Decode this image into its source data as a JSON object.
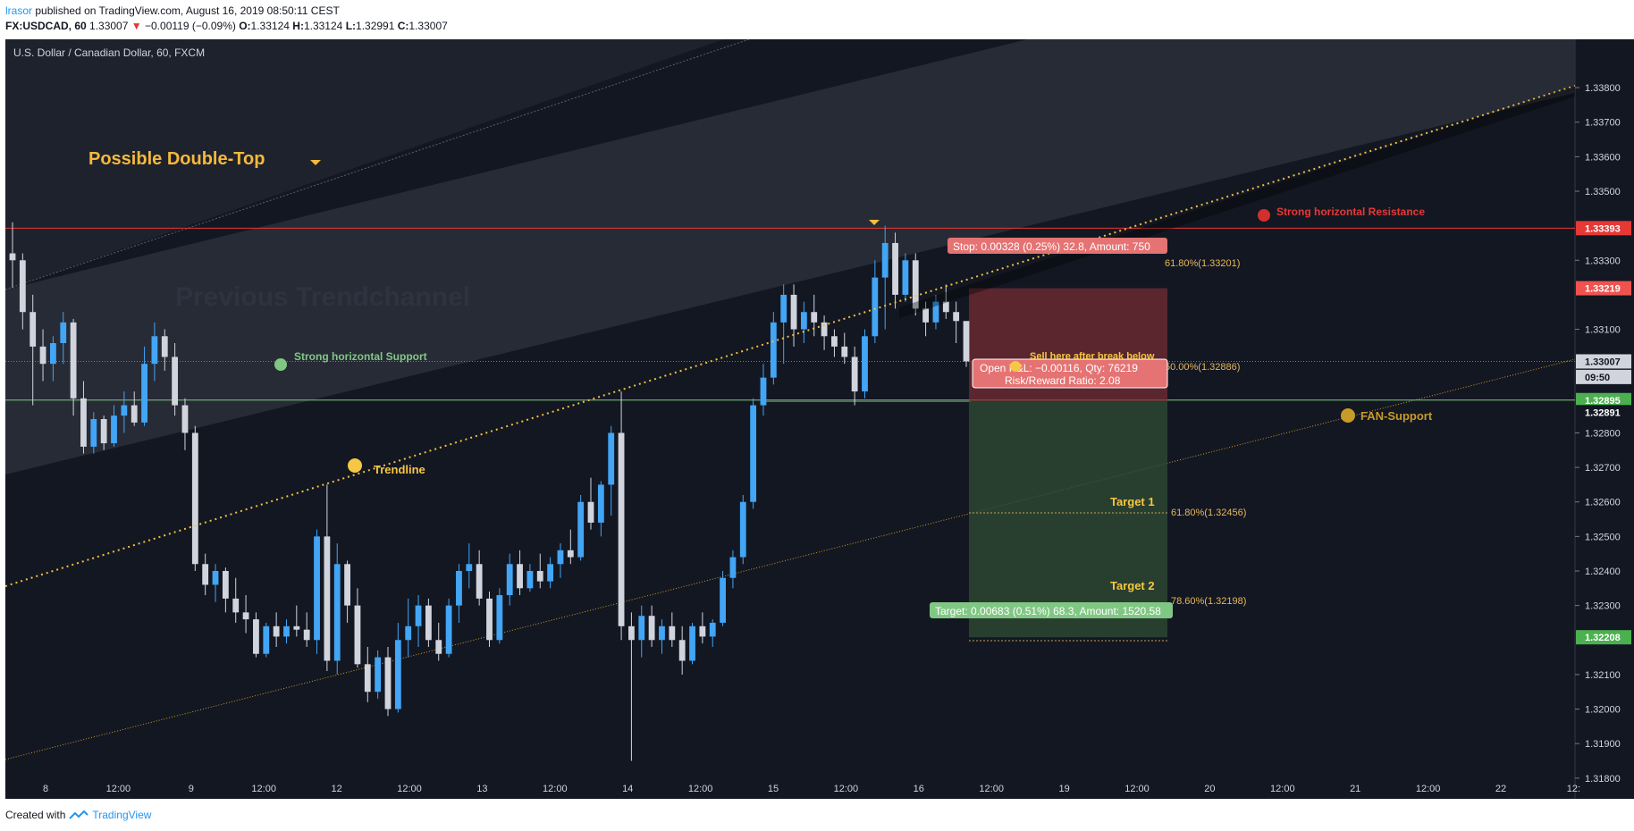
{
  "header": {
    "author": "lrasor",
    "published_text": "published on TradingView.com, August 16, 2019 08:50:11 CEST",
    "symbol": "FX:USDCAD, 60",
    "last": "1.33007",
    "arrow": "▼",
    "change": "−0.00119 (−0.09%)",
    "o_label": "O:",
    "o_value": "1.33124",
    "h_label": "H:",
    "h_value": "1.33124",
    "l_label": "L:",
    "l_value": "1.32991",
    "c_label": "C:",
    "c_value": "1.33007"
  },
  "footer": {
    "created_with": "Created with",
    "brand": "TradingView"
  },
  "chart_data": {
    "type": "candlestick",
    "title": "U.S. Dollar / Canadian Dollar, 60, FXCM",
    "ylim": [
      1.3174,
      1.3394
    ],
    "y_ticks": [
      "1.33800",
      "1.33700",
      "1.33600",
      "1.33500",
      "1.33300",
      "1.33100",
      "1.32800",
      "1.32700",
      "1.32600",
      "1.32500",
      "1.32400",
      "1.32300",
      "1.32100",
      "1.32000",
      "1.31900",
      "1.31800"
    ],
    "x_ticks": [
      "8",
      "12:00",
      "9",
      "12:00",
      "12",
      "12:00",
      "13",
      "12:00",
      "14",
      "12:00",
      "15",
      "12:00",
      "16",
      "12:00",
      "19",
      "12:00",
      "20",
      "12:00",
      "21",
      "12:00",
      "22",
      "12:"
    ],
    "price_labels": [
      {
        "value": "1.33393",
        "price": 1.33393,
        "color": "#e53935"
      },
      {
        "value": "1.33219",
        "price": 1.33219,
        "color": "#ef5350"
      },
      {
        "value": "1.33007",
        "price": 1.33007,
        "color": "#d1d4dc"
      },
      {
        "value": "09:50",
        "price": 1.32962,
        "color": "#d1d4dc"
      },
      {
        "value": "1.32895",
        "price": 1.32895,
        "color": "#4caf50"
      },
      {
        "value": "1.32891",
        "price": 1.3286,
        "color": "#131722"
      },
      {
        "value": "1.32208",
        "price": 1.32208,
        "color": "#4caf50"
      }
    ],
    "annotations": {
      "double_top": "Possible Double-Top",
      "prev_channel": "Previous Trendchannel",
      "support": "Strong horizontal Support",
      "resistance": "Strong horizontal Resistance",
      "trendline": "Trendline",
      "fan_support": "FAN-Support",
      "sell_note": "Sell here after break below",
      "target1": "Target 1",
      "target2": "Target 2",
      "fib_618_top": "61.80%(1.33201)",
      "fib_50": "50.00%(1.32886)",
      "fib_618_bottom": "61.80%(1.32456)",
      "fib_786": "78.60%(1.32198)",
      "stop_box": "Stop: 0.00328 (0.25%) 32.8, Amount: 750",
      "open_pl": "Open P&L: −0.00116, Qty: 76219",
      "risk_reward": "Risk/Reward Ratio: 2.08",
      "target_box": "Target: 0.00683 (0.51%) 68.3, Amount: 1520.58"
    },
    "levels": {
      "resistance": 1.33393,
      "support": 1.32895,
      "entry": 1.32891,
      "stop": 1.33219,
      "target": 1.32208,
      "current": 1.33007
    },
    "candles": [
      [
        1.3332,
        1.3341,
        1.3322,
        1.333
      ],
      [
        1.333,
        1.3332,
        1.331,
        1.3315
      ],
      [
        1.3315,
        1.332,
        1.3288,
        1.3305
      ],
      [
        1.3305,
        1.331,
        1.3295,
        1.33
      ],
      [
        1.33,
        1.3308,
        1.3295,
        1.3306
      ],
      [
        1.3306,
        1.3315,
        1.33,
        1.3312
      ],
      [
        1.3312,
        1.3313,
        1.3285,
        1.329
      ],
      [
        1.329,
        1.3295,
        1.3274,
        1.3276
      ],
      [
        1.3276,
        1.3286,
        1.3274,
        1.3284
      ],
      [
        1.3284,
        1.3285,
        1.3275,
        1.3277
      ],
      [
        1.3277,
        1.3288,
        1.3276,
        1.3285
      ],
      [
        1.3285,
        1.3292,
        1.328,
        1.3288
      ],
      [
        1.3288,
        1.3292,
        1.3282,
        1.3283
      ],
      [
        1.3283,
        1.3305,
        1.3282,
        1.33
      ],
      [
        1.33,
        1.3312,
        1.3295,
        1.3308
      ],
      [
        1.3308,
        1.331,
        1.3298,
        1.3302
      ],
      [
        1.3302,
        1.3306,
        1.3285,
        1.3288
      ],
      [
        1.3288,
        1.329,
        1.3275,
        1.328
      ],
      [
        1.328,
        1.3282,
        1.324,
        1.3242
      ],
      [
        1.3242,
        1.3245,
        1.3233,
        1.3236
      ],
      [
        1.3236,
        1.3242,
        1.3231,
        1.324
      ],
      [
        1.324,
        1.3241,
        1.3228,
        1.3232
      ],
      [
        1.3232,
        1.3238,
        1.3225,
        1.3228
      ],
      [
        1.3228,
        1.3233,
        1.3222,
        1.3226
      ],
      [
        1.3226,
        1.3228,
        1.3215,
        1.3216
      ],
      [
        1.3216,
        1.3225,
        1.3215,
        1.3224
      ],
      [
        1.3224,
        1.3228,
        1.3218,
        1.3221
      ],
      [
        1.3221,
        1.3226,
        1.3219,
        1.3224
      ],
      [
        1.3224,
        1.323,
        1.3221,
        1.3223
      ],
      [
        1.3223,
        1.3228,
        1.3218,
        1.322
      ],
      [
        1.322,
        1.3252,
        1.3216,
        1.325
      ],
      [
        1.325,
        1.3265,
        1.3211,
        1.3214
      ],
      [
        1.3214,
        1.3248,
        1.321,
        1.3242
      ],
      [
        1.3242,
        1.3243,
        1.3225,
        1.323
      ],
      [
        1.323,
        1.3235,
        1.3212,
        1.3213
      ],
      [
        1.3213,
        1.3218,
        1.3202,
        1.3205
      ],
      [
        1.3205,
        1.3217,
        1.3203,
        1.3215
      ],
      [
        1.3215,
        1.3218,
        1.3198,
        1.32
      ],
      [
        1.32,
        1.3225,
        1.3199,
        1.322
      ],
      [
        1.322,
        1.3232,
        1.3215,
        1.3224
      ],
      [
        1.3224,
        1.3233,
        1.3218,
        1.323
      ],
      [
        1.323,
        1.3232,
        1.3218,
        1.322
      ],
      [
        1.322,
        1.3225,
        1.3214,
        1.3216
      ],
      [
        1.3216,
        1.3232,
        1.3215,
        1.323
      ],
      [
        1.323,
        1.3242,
        1.3225,
        1.324
      ],
      [
        1.324,
        1.3248,
        1.3235,
        1.3242
      ],
      [
        1.3242,
        1.3246,
        1.323,
        1.3232
      ],
      [
        1.3232,
        1.3234,
        1.3218,
        1.322
      ],
      [
        1.322,
        1.3235,
        1.3219,
        1.3233
      ],
      [
        1.3233,
        1.3245,
        1.323,
        1.3242
      ],
      [
        1.3242,
        1.3246,
        1.3233,
        1.3235
      ],
      [
        1.3235,
        1.3242,
        1.3234,
        1.324
      ],
      [
        1.324,
        1.3245,
        1.3235,
        1.3237
      ],
      [
        1.3237,
        1.3244,
        1.3235,
        1.3242
      ],
      [
        1.3242,
        1.3248,
        1.3238,
        1.3246
      ],
      [
        1.3246,
        1.3252,
        1.3242,
        1.3244
      ],
      [
        1.3244,
        1.3262,
        1.3243,
        1.326
      ],
      [
        1.326,
        1.3267,
        1.3252,
        1.3254
      ],
      [
        1.3254,
        1.3266,
        1.325,
        1.3265
      ],
      [
        1.3265,
        1.3282,
        1.3256,
        1.328
      ],
      [
        1.328,
        1.3292,
        1.322,
        1.3224
      ],
      [
        1.3224,
        1.3228,
        1.3185,
        1.322
      ],
      [
        1.322,
        1.323,
        1.3215,
        1.3227
      ],
      [
        1.3227,
        1.323,
        1.3218,
        1.322
      ],
      [
        1.322,
        1.3226,
        1.3216,
        1.3224
      ],
      [
        1.3224,
        1.3228,
        1.3218,
        1.322
      ],
      [
        1.322,
        1.3224,
        1.321,
        1.3214
      ],
      [
        1.3214,
        1.3225,
        1.3213,
        1.3224
      ],
      [
        1.3224,
        1.3228,
        1.3219,
        1.3221
      ],
      [
        1.3221,
        1.3226,
        1.3218,
        1.3225
      ],
      [
        1.3225,
        1.324,
        1.3224,
        1.3238
      ],
      [
        1.3238,
        1.3246,
        1.3235,
        1.3244
      ],
      [
        1.3244,
        1.3262,
        1.3242,
        1.326
      ],
      [
        1.326,
        1.329,
        1.3258,
        1.3288
      ],
      [
        1.3288,
        1.33,
        1.3285,
        1.3296
      ],
      [
        1.3296,
        1.3315,
        1.3294,
        1.3312
      ],
      [
        1.3312,
        1.3323,
        1.33,
        1.332
      ],
      [
        1.332,
        1.3323,
        1.3305,
        1.331
      ],
      [
        1.331,
        1.3318,
        1.3306,
        1.3315
      ],
      [
        1.3315,
        1.332,
        1.3308,
        1.3312
      ],
      [
        1.3312,
        1.3314,
        1.3304,
        1.3308
      ],
      [
        1.3308,
        1.331,
        1.3302,
        1.3305
      ],
      [
        1.3305,
        1.3309,
        1.33,
        1.3302
      ],
      [
        1.3302,
        1.3305,
        1.3288,
        1.3292
      ],
      [
        1.3292,
        1.331,
        1.329,
        1.3308
      ],
      [
        1.3308,
        1.333,
        1.3306,
        1.3325
      ],
      [
        1.3325,
        1.334,
        1.331,
        1.3335
      ],
      [
        1.3335,
        1.3338,
        1.3316,
        1.332
      ],
      [
        1.332,
        1.3332,
        1.3318,
        1.333
      ],
      [
        1.333,
        1.3332,
        1.3314,
        1.3316
      ],
      [
        1.3316,
        1.3318,
        1.3308,
        1.3312
      ],
      [
        1.3312,
        1.332,
        1.331,
        1.3318
      ],
      [
        1.3318,
        1.3323,
        1.3313,
        1.3315
      ],
      [
        1.3315,
        1.3318,
        1.3306,
        1.33124
      ],
      [
        1.33124,
        1.33124,
        1.32991,
        1.33007
      ]
    ]
  }
}
